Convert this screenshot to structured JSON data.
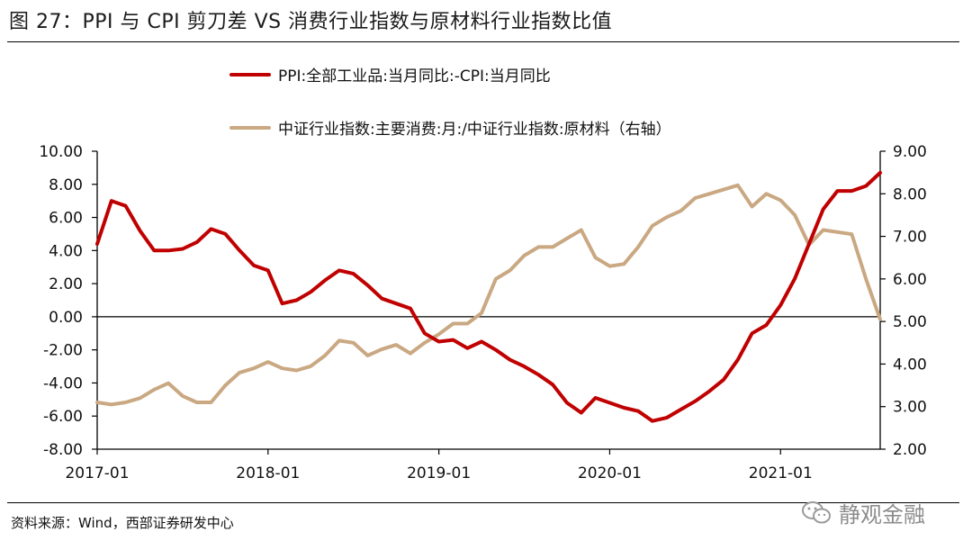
{
  "title": "图 27：PPI 与 CPI 剪刀差  VS  消费行业指数与原材料行业指数比值",
  "source": "资料来源：Wind，西部证券研发中心",
  "watermark": "静观金融",
  "chart_data": {
    "type": "line",
    "x_tick_labels": [
      "2017-01",
      "2018-01",
      "2019-01",
      "2020-01",
      "2021-01"
    ],
    "y_left": {
      "ticks": [
        "10.00",
        "8.00",
        "6.00",
        "4.00",
        "2.00",
        "0.00",
        "-2.00",
        "-4.00",
        "-6.00",
        "-8.00"
      ],
      "range": [
        -8,
        10
      ]
    },
    "y_right": {
      "ticks": [
        "9.00",
        "8.00",
        "7.00",
        "6.00",
        "5.00",
        "4.00",
        "3.00",
        "2.00"
      ],
      "range": [
        2,
        9
      ]
    },
    "grid": false,
    "legend_position": "top",
    "x_start": "2017-01",
    "series": [
      {
        "name": "PPI:全部工业品:当月同比:-CPI:当月同比",
        "axis": "left",
        "color": "#c00000",
        "values": [
          4.4,
          7.0,
          6.7,
          5.2,
          4.0,
          4.0,
          4.1,
          4.5,
          5.3,
          5.0,
          4.0,
          3.1,
          2.8,
          0.8,
          1.0,
          1.5,
          2.2,
          2.8,
          2.6,
          1.9,
          1.1,
          0.8,
          0.5,
          -1.0,
          -1.5,
          -1.4,
          -1.9,
          -1.5,
          -2.0,
          -2.6,
          -3.0,
          -3.5,
          -4.1,
          -5.2,
          -5.8,
          -4.9,
          -5.2,
          -5.5,
          -5.7,
          -6.3,
          -6.1,
          -5.6,
          -5.1,
          -4.5,
          -3.8,
          -2.6,
          -1.0,
          -0.5,
          0.7,
          2.3,
          4.4,
          6.5,
          7.6,
          7.6,
          7.9,
          8.7
        ]
      },
      {
        "name": "中证行业指数:主要消费:月:/中证行业指数:原材料（右轴）",
        "axis": "right",
        "color": "#c9a882",
        "values": [
          3.1,
          3.05,
          3.1,
          3.2,
          3.4,
          3.55,
          3.25,
          3.1,
          3.1,
          3.5,
          3.8,
          3.9,
          4.05,
          3.9,
          3.85,
          3.95,
          4.2,
          4.55,
          4.5,
          4.2,
          4.35,
          4.45,
          4.25,
          4.5,
          4.7,
          4.95,
          4.95,
          5.2,
          6.0,
          6.2,
          6.55,
          6.75,
          6.75,
          6.95,
          7.15,
          6.5,
          6.3,
          6.35,
          6.75,
          7.25,
          7.45,
          7.6,
          7.9,
          8.0,
          8.1,
          8.2,
          7.7,
          8.0,
          7.85,
          7.5,
          6.8,
          7.15,
          7.1,
          7.05,
          6.0,
          5.05
        ]
      }
    ]
  }
}
